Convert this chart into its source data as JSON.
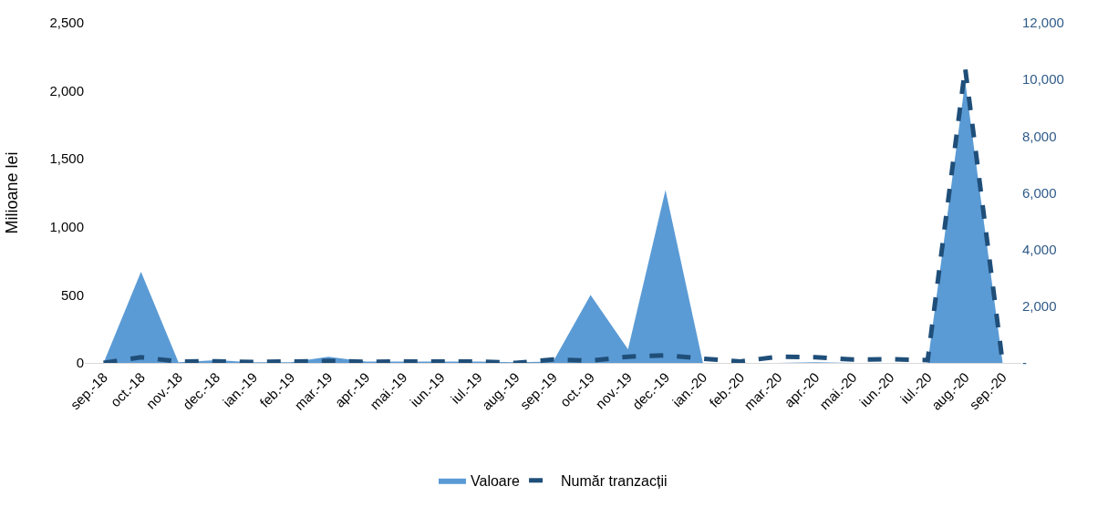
{
  "chart_data": {
    "type": "area",
    "ylabel": "Milioane lei",
    "categories": [
      "sep.-18",
      "oct.-18",
      "nov.-18",
      "dec.-18",
      "ian.-19",
      "feb.-19",
      "mar.-19",
      "apr.-19",
      "mai.-19",
      "iun.-19",
      "iul.-19",
      "aug.-19",
      "sep.-19",
      "oct.-19",
      "nov.-19",
      "dec.-19",
      "ian.-20",
      "feb.-20",
      "mar.-20",
      "apr.-20",
      "mai.-20",
      "iun.-20",
      "iul.-20",
      "aug.-20",
      "sep.-20"
    ],
    "series": [
      {
        "name": "Valoare",
        "color": "#5b9bd5",
        "values": [
          0,
          670,
          5,
          20,
          5,
          5,
          45,
          10,
          10,
          10,
          10,
          5,
          10,
          500,
          100,
          1270,
          0,
          0,
          0,
          5,
          0,
          0,
          0,
          2070,
          0
        ]
      },
      {
        "name": "Număr tranzacții",
        "type": "line",
        "axis": "y2",
        "color": "#1f4e79",
        "line_style": "dashed",
        "values": [
          0,
          200,
          50,
          60,
          30,
          50,
          70,
          40,
          50,
          50,
          50,
          0,
          120,
          80,
          220,
          270,
          150,
          50,
          220,
          200,
          120,
          130,
          100,
          10400,
          0
        ]
      }
    ],
    "ylim": [
      0,
      2500
    ],
    "yticks": [
      0,
      {
        "value": 500,
        "label": "500"
      },
      {
        "value": 1000,
        "label": "1,000"
      },
      {
        "value": 1500,
        "label": "1,500"
      },
      {
        "value": 2000,
        "label": "2,000"
      },
      {
        "value": 2500,
        "label": "2,500"
      }
    ],
    "y2lim": [
      0,
      12000
    ],
    "y2ticks": [
      {
        "value": 0,
        "label": "-"
      },
      {
        "value": 2000,
        "label": "2,000"
      },
      {
        "value": 4000,
        "label": "4,000"
      },
      {
        "value": 6000,
        "label": "6,000"
      },
      {
        "value": 8000,
        "label": "8,000"
      },
      {
        "value": 10000,
        "label": "10,000"
      },
      {
        "value": 12000,
        "label": "12,000"
      }
    ],
    "legend": "bottom"
  }
}
